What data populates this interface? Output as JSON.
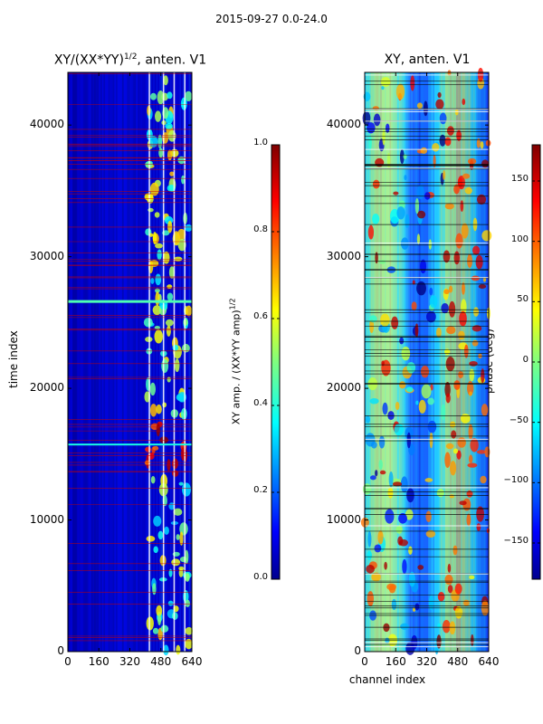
{
  "chart_data": [
    {
      "type": "heatmap",
      "title_prefix": "XY/(XX*YY)",
      "title_sup": "1/2",
      "title_suffix": ", anten. V1",
      "xlabel": "",
      "ylabel": "time index",
      "xlim": [
        0,
        640
      ],
      "ylim": [
        0,
        44000
      ],
      "x_ticks": [
        0,
        160,
        320,
        480,
        640
      ],
      "y_ticks": [
        0,
        10000,
        20000,
        30000,
        40000
      ],
      "colormap": "jet",
      "colorbar": {
        "label_main": "XY amp. / (XX*YY amp)",
        "label_sup": "1/2",
        "range": [
          0.0,
          1.0
        ],
        "ticks": [
          0.0,
          0.2,
          0.4,
          0.6,
          0.8,
          1.0
        ],
        "tick_labels": [
          "0.0",
          "0.2",
          "0.4",
          "0.6",
          "0.8",
          "1.0"
        ]
      }
    },
    {
      "type": "heatmap",
      "title": "XY, anten. V1",
      "xlabel": "channel index",
      "ylabel": "",
      "xlim": [
        0,
        640
      ],
      "ylim": [
        0,
        44000
      ],
      "x_ticks": [
        0,
        160,
        320,
        480,
        640
      ],
      "y_ticks": [
        0,
        10000,
        20000,
        30000,
        40000
      ],
      "colormap": "jet",
      "colorbar": {
        "label": "phase (deg)",
        "range": [
          -180,
          180
        ],
        "ticks": [
          -150,
          -100,
          -50,
          0,
          50,
          100,
          150
        ],
        "tick_labels": [
          "−150",
          "−100",
          "−50",
          "0",
          "50",
          "100",
          "150"
        ]
      }
    }
  ],
  "suptitle": "2015-09-27 0.0-24.0",
  "colors": {
    "jet_dark_blue": "#00008f",
    "jet_red": "#ff0000",
    "flag_line_red": "#c80000"
  }
}
